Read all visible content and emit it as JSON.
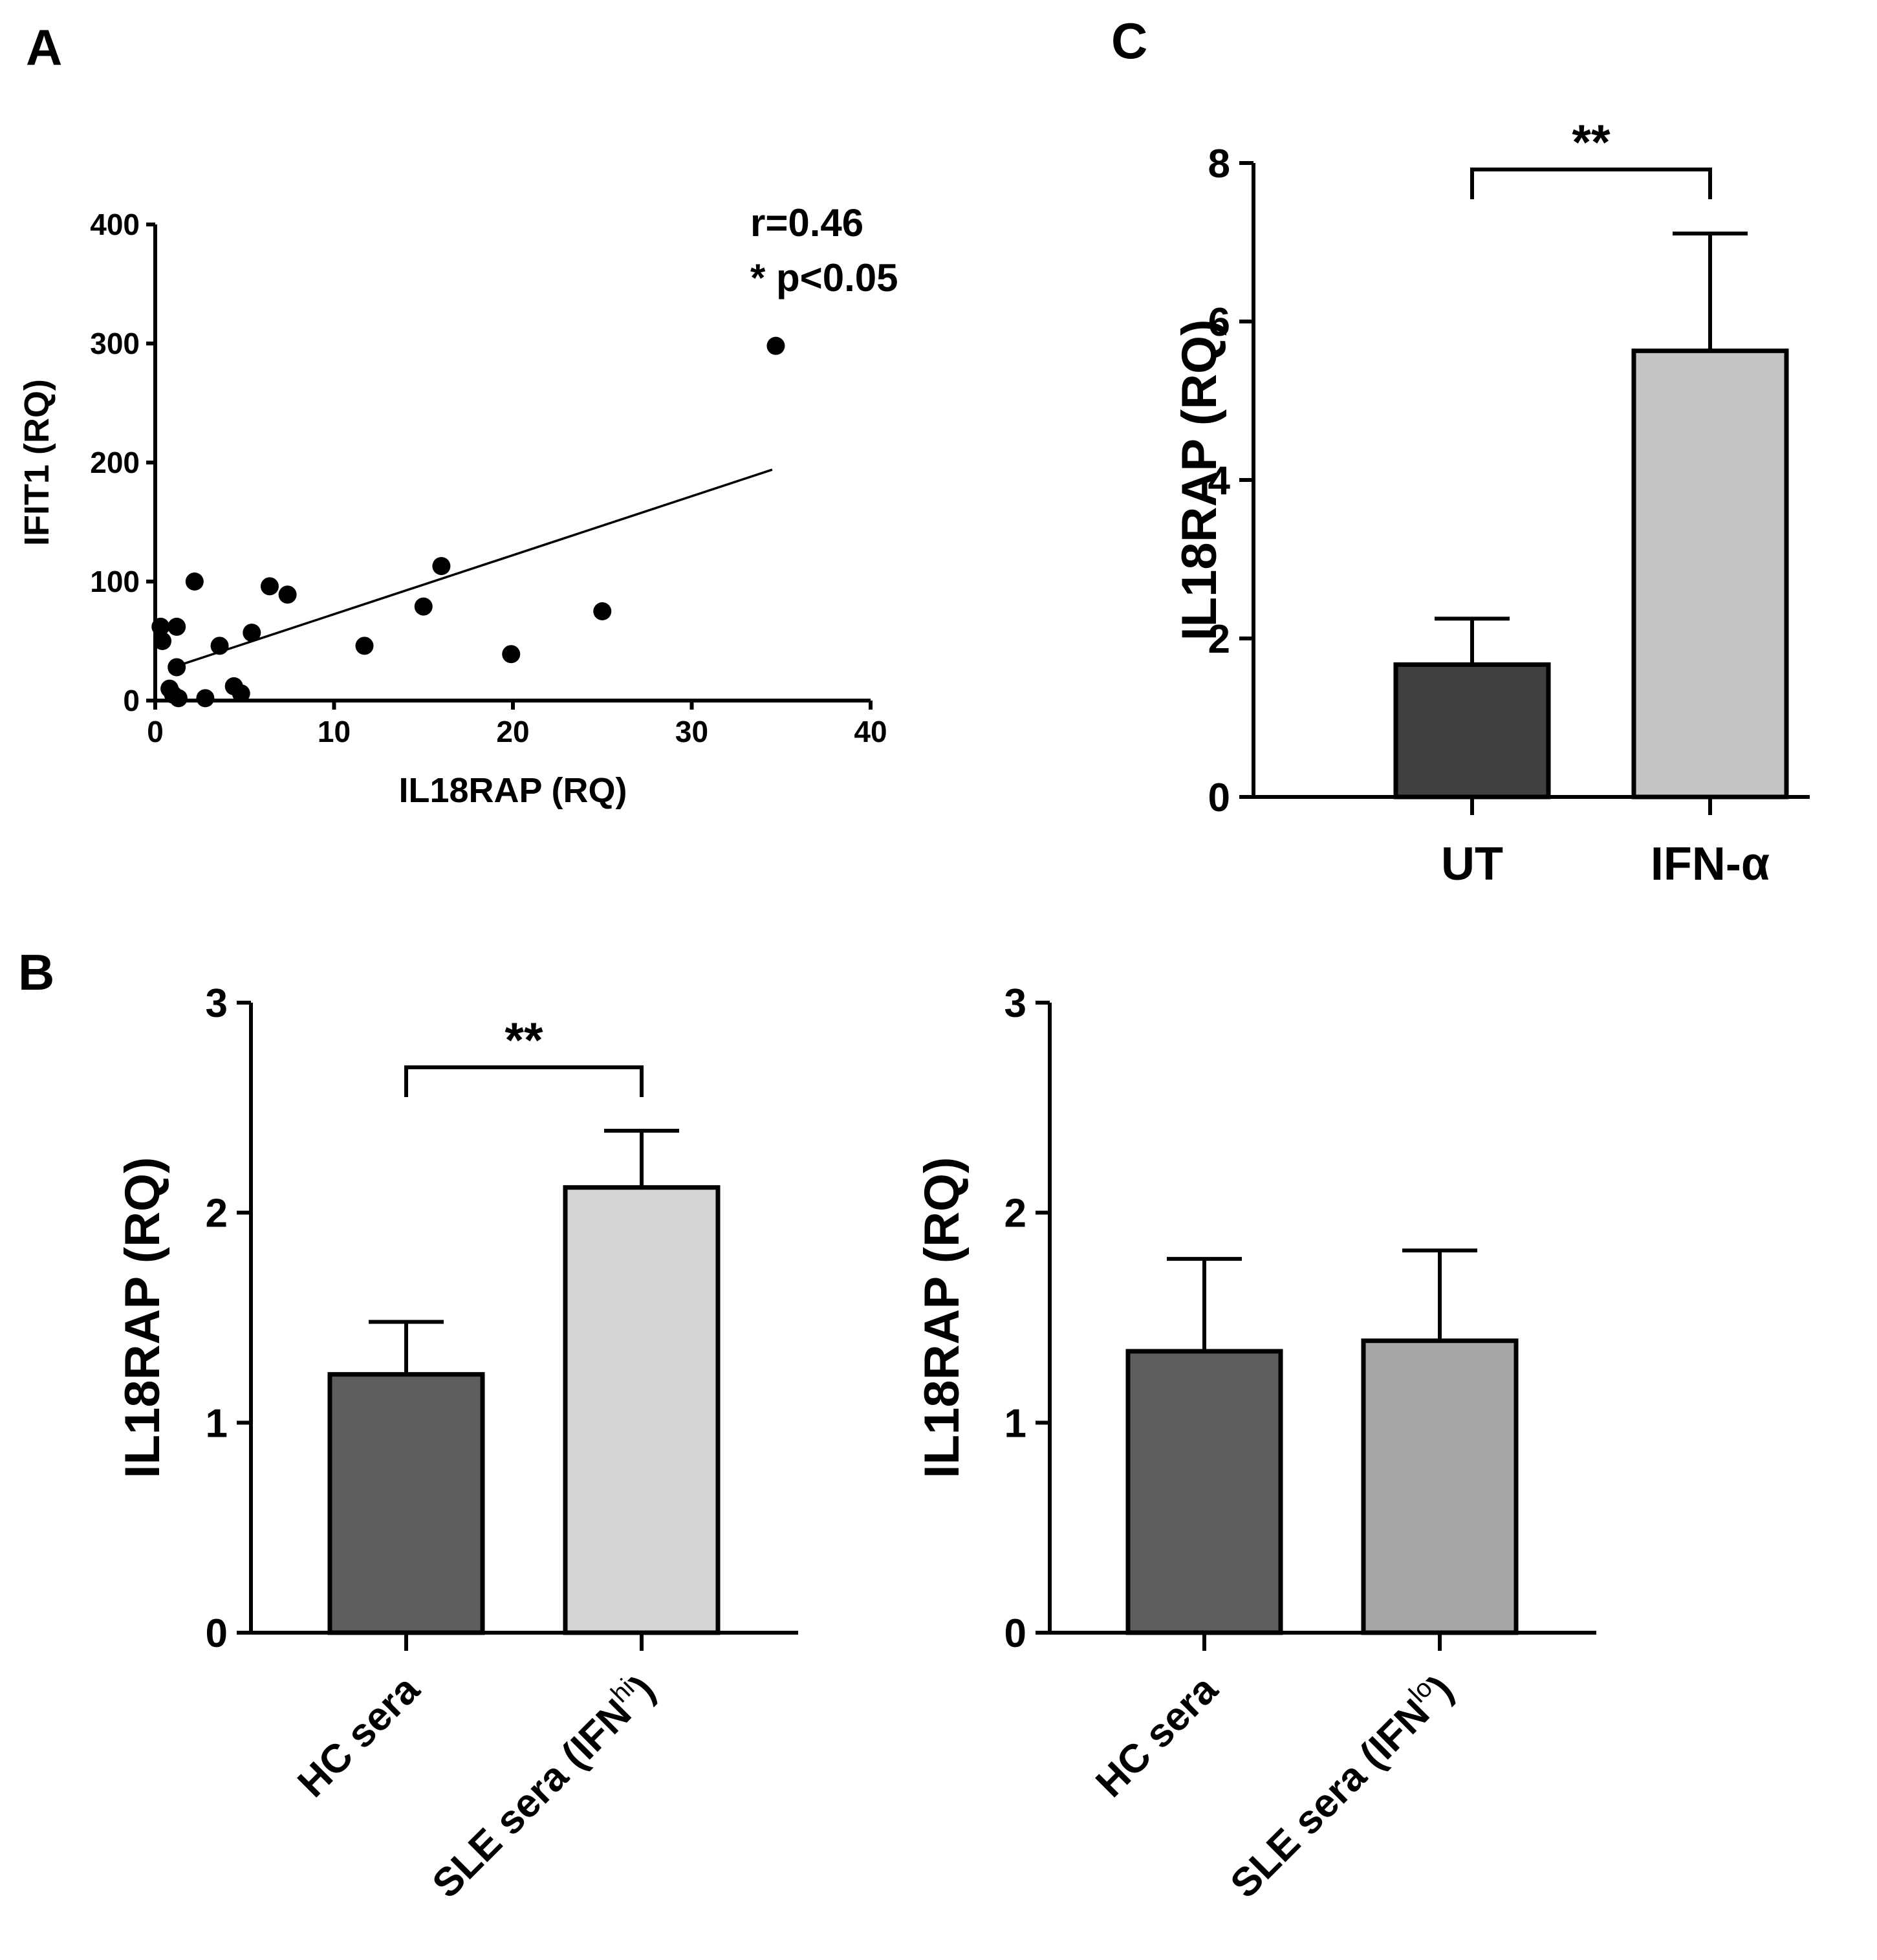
{
  "chart_data": [
    {
      "panel": "A",
      "type": "scatter",
      "xlabel": "IL18RAP (RQ)",
      "ylabel": "IFIT1 (RQ)",
      "xlim": [
        0,
        40
      ],
      "ylim": [
        0,
        400
      ],
      "xticks": [
        0,
        10,
        20,
        30,
        40
      ],
      "yticks": [
        0,
        100,
        200,
        300,
        400
      ],
      "annotation_r": "r=0.46",
      "annotation_p": "* p<0.05",
      "points": [
        [
          0.3,
          62
        ],
        [
          0.4,
          50
        ],
        [
          1.2,
          62
        ],
        [
          2.2,
          100
        ],
        [
          0.8,
          10
        ],
        [
          1.0,
          5
        ],
        [
          1.3,
          2
        ],
        [
          1.2,
          28
        ],
        [
          2.8,
          2
        ],
        [
          3.6,
          46
        ],
        [
          4.4,
          12
        ],
        [
          4.8,
          6
        ],
        [
          5.4,
          57
        ],
        [
          6.4,
          96
        ],
        [
          7.4,
          89
        ],
        [
          11.7,
          46
        ],
        [
          15.0,
          79
        ],
        [
          16.0,
          113
        ],
        [
          19.9,
          39
        ],
        [
          25.0,
          75
        ],
        [
          34.7,
          298
        ]
      ],
      "fit_line": {
        "x": [
          0.8,
          34.5
        ],
        "y": [
          27,
          194
        ]
      }
    },
    {
      "panel": "B",
      "type": "bar",
      "ylabel": "IL18RAP (RQ)",
      "ylim": [
        0,
        3
      ],
      "yticks": [
        0,
        1,
        2,
        3
      ],
      "categories": [
        {
          "main": "HC sera",
          "sup": "",
          "close": ""
        },
        {
          "main": "SLE sera (IFN",
          "sup": "hi",
          "close": ")"
        }
      ],
      "values": [
        1.23,
        2.12
      ],
      "errors": [
        0.25,
        0.27
      ],
      "colors": [
        "#5e5e5e",
        "#d4d4d4"
      ],
      "significance": "**"
    },
    {
      "panel": "",
      "type": "bar",
      "ylabel": "IL18RAP (RQ)",
      "ylim": [
        0,
        3
      ],
      "yticks": [
        0,
        1,
        2,
        3
      ],
      "categories": [
        {
          "main": "HC sera",
          "sup": "",
          "close": ""
        },
        {
          "main": "SLE sera (IFN",
          "sup": "lo",
          "close": ")"
        }
      ],
      "values": [
        1.34,
        1.39
      ],
      "errors": [
        0.44,
        0.43
      ],
      "colors": [
        "#5e5e5e",
        "#a6a6a8"
      ],
      "significance": ""
    },
    {
      "panel": "C",
      "type": "bar",
      "ylabel": "IL18RAP (RQ)",
      "ylim": [
        0,
        8
      ],
      "yticks": [
        0,
        2,
        4,
        6,
        8
      ],
      "categories": [
        {
          "main": "UT",
          "sup": "",
          "close": ""
        },
        {
          "main": "IFN-α",
          "sup": "",
          "close": ""
        }
      ],
      "values": [
        1.67,
        5.63
      ],
      "errors": [
        0.58,
        1.48
      ],
      "colors": [
        "#404040",
        "#c4c4c4"
      ],
      "significance": "**"
    }
  ]
}
